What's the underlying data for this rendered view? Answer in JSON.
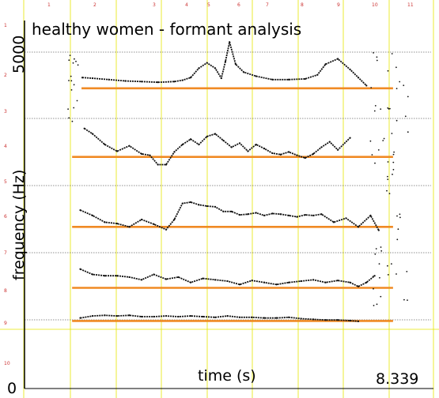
{
  "chart_data": {
    "type": "line",
    "title": "healthy women - formant analysis",
    "xlabel": "time (s)",
    "ylabel": "frequency (Hz)",
    "x_end_readout": "8.339",
    "y_tick_labels": [
      {
        "value": 0,
        "label": "0"
      },
      {
        "value": 5000,
        "label": "5000"
      }
    ],
    "top_ruler_labels": [
      "1",
      "2",
      "3",
      "4",
      "5",
      "6",
      "7",
      "8",
      "9",
      "10",
      "11"
    ],
    "left_ruler_labels": [
      "1",
      "2",
      "3",
      "4",
      "5",
      "6",
      "7",
      "8",
      "9",
      "10"
    ],
    "xlim": [
      0,
      8.339
    ],
    "ylim": [
      0,
      5500
    ],
    "colors": {
      "track": "#111111",
      "reference": "#f08a24",
      "vertical_grid": "#e6e600",
      "horizontal_grid": "#222222"
    },
    "reference_lines": [
      {
        "name": "",
        "y": 4460,
        "x": [
          0.33,
          7.95
        ]
      },
      {
        "name": "",
        "y": 3435,
        "x": [
          0.1,
          7.95
        ]
      },
      {
        "name": "",
        "y": 2390,
        "x": [
          0.1,
          7.95
        ]
      },
      {
        "name": "",
        "y": 1480,
        "x": [
          0.1,
          7.95
        ]
      },
      {
        "name": "",
        "y": 985,
        "x": [
          0.1,
          7.95
        ]
      }
    ],
    "series": [
      {
        "x": [
          0.35,
          0.6,
          1.0,
          1.4,
          1.8,
          2.2,
          2.6,
          2.8,
          3.0,
          3.2,
          3.4,
          3.6,
          3.75,
          3.85,
          3.95,
          4.1,
          4.3,
          4.6,
          5.0,
          5.4,
          5.8,
          6.1,
          6.3,
          6.6,
          6.9,
          7.1,
          7.3
        ],
        "y": [
          4620,
          4610,
          4590,
          4570,
          4560,
          4550,
          4560,
          4580,
          4620,
          4760,
          4840,
          4760,
          4610,
          4860,
          5150,
          4820,
          4700,
          4640,
          4590,
          4590,
          4600,
          4660,
          4820,
          4900,
          4740,
          4620,
          4500
        ]
      },
      {
        "x": [
          0.4,
          0.6,
          0.9,
          1.2,
          1.5,
          1.8,
          2.0,
          2.2,
          2.4,
          2.6,
          2.8,
          3.0,
          3.2,
          3.4,
          3.6,
          3.8,
          4.0,
          4.2,
          4.4,
          4.6,
          4.8,
          5.0,
          5.2,
          5.4,
          5.6,
          5.8,
          6.0,
          6.2,
          6.4,
          6.6,
          6.9
        ],
        "y": [
          3860,
          3780,
          3620,
          3520,
          3600,
          3480,
          3460,
          3320,
          3320,
          3510,
          3620,
          3700,
          3620,
          3740,
          3780,
          3680,
          3580,
          3640,
          3520,
          3620,
          3560,
          3490,
          3470,
          3510,
          3460,
          3420,
          3480,
          3580,
          3660,
          3540,
          3720
        ]
      },
      {
        "x": [
          0.3,
          0.6,
          0.9,
          1.2,
          1.5,
          1.8,
          2.1,
          2.4,
          2.6,
          2.8,
          3.0,
          3.2,
          3.4,
          3.6,
          3.8,
          4.0,
          4.2,
          4.4,
          4.6,
          4.8,
          5.0,
          5.2,
          5.4,
          5.6,
          5.8,
          6.0,
          6.2,
          6.5,
          6.8,
          7.1,
          7.4,
          7.6
        ],
        "y": [
          2640,
          2560,
          2460,
          2440,
          2390,
          2500,
          2430,
          2350,
          2500,
          2740,
          2760,
          2720,
          2700,
          2690,
          2620,
          2620,
          2570,
          2580,
          2600,
          2560,
          2590,
          2580,
          2560,
          2540,
          2570,
          2560,
          2580,
          2460,
          2520,
          2390,
          2560,
          2340
        ]
      },
      {
        "x": [
          0.3,
          0.6,
          0.9,
          1.2,
          1.5,
          1.8,
          2.1,
          2.4,
          2.7,
          3.0,
          3.3,
          3.6,
          3.9,
          4.2,
          4.5,
          4.8,
          5.1,
          5.4,
          5.7,
          6.0,
          6.3,
          6.6,
          6.9,
          7.1,
          7.3,
          7.5
        ],
        "y": [
          1760,
          1680,
          1660,
          1660,
          1640,
          1600,
          1680,
          1610,
          1640,
          1560,
          1620,
          1600,
          1580,
          1530,
          1590,
          1560,
          1530,
          1560,
          1580,
          1600,
          1560,
          1590,
          1560,
          1500,
          1560,
          1660
        ]
      },
      {
        "x": [
          0.3,
          0.6,
          0.9,
          1.2,
          1.5,
          1.8,
          2.1,
          2.4,
          2.7,
          3.0,
          3.3,
          3.6,
          3.9,
          4.2,
          4.5,
          4.8,
          5.1,
          5.4,
          5.7,
          6.0,
          6.3,
          6.6,
          6.9,
          7.1
        ],
        "y": [
          1030,
          1060,
          1070,
          1060,
          1070,
          1050,
          1050,
          1060,
          1050,
          1060,
          1050,
          1040,
          1060,
          1040,
          1040,
          1030,
          1030,
          1040,
          1020,
          1010,
          1000,
          1000,
          990,
          980
        ]
      }
    ]
  }
}
